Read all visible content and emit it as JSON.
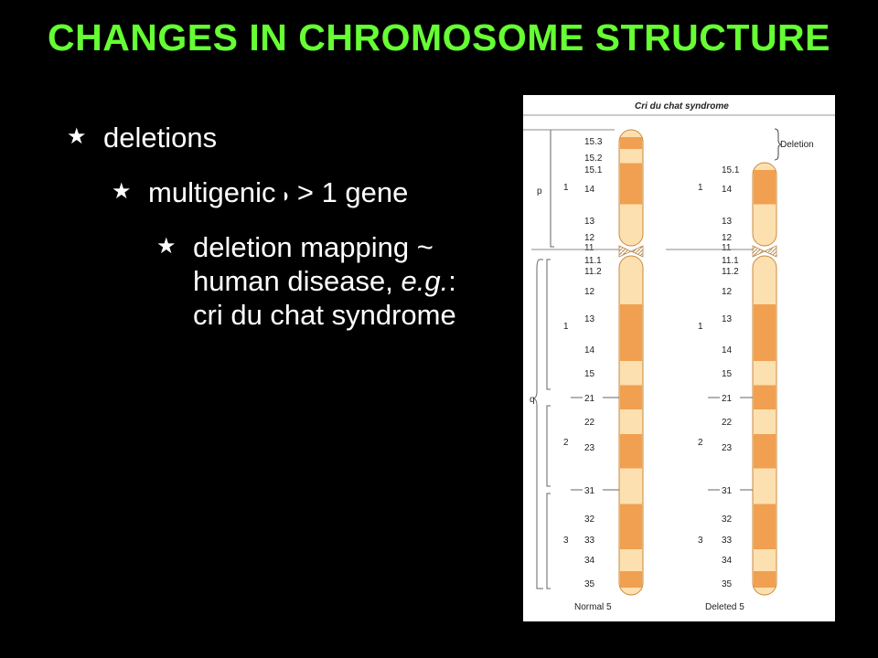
{
  "slide": {
    "title": "CHANGES IN CHROMOSOME STRUCTURE",
    "bullets": {
      "b1": "deletions",
      "b2_a": "multigenic",
      "b2_b": "> 1 gene",
      "b3_line1": "deletion mapping ~",
      "b3_line2_a": "human disease, ",
      "b3_line2_em": "e.g.",
      "b3_line2_b": ":",
      "b3_line3": "cri du chat syndrome"
    },
    "bullet_icon": "star-icon",
    "arrow_icon": "right-arrowhead-icon",
    "colors": {
      "title": "#66ff33",
      "text": "#ffffff",
      "background": "#000000",
      "band_dark": "#f0a050",
      "band_light": "#fde0b0"
    }
  },
  "figure": {
    "title": "Cri du chat syndrome",
    "deletion_label": "Deletion",
    "normal_caption": "Normal 5",
    "deleted_caption": "Deleted 5",
    "arm_p": "p",
    "arm_q": "q",
    "region_labels_normal": [
      "1",
      "1",
      "2",
      "3"
    ],
    "region_labels_deleted": [
      "1",
      "1",
      "2",
      "3"
    ],
    "bands_normal": [
      "15.3",
      "15.2",
      "15.1",
      "14",
      "13",
      "12",
      "11",
      "11.1",
      "11.2",
      "12",
      "13",
      "14",
      "15",
      "21",
      "22",
      "23",
      "31",
      "32",
      "33",
      "34",
      "35"
    ],
    "bands_deleted": [
      "15.1",
      "14",
      "13",
      "12",
      "11",
      "11.1",
      "11.2",
      "12",
      "13",
      "14",
      "15",
      "21",
      "22",
      "23",
      "31",
      "32",
      "33",
      "34",
      "35"
    ]
  }
}
